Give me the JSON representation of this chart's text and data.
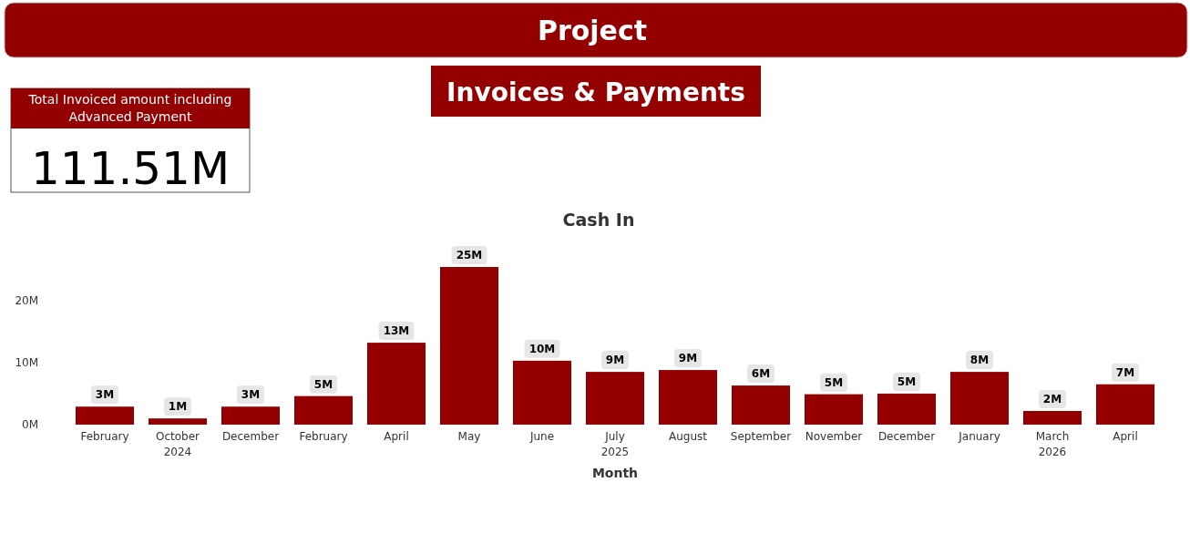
{
  "chart_data": [
    {
      "type": "other",
      "title": "Project",
      "subtitle": "Invoices & Payments"
    },
    {
      "type": "other",
      "title": "Total Invoiced amount including Advanced Payment",
      "annotations": [
        "111.51M"
      ]
    },
    {
      "type": "bar",
      "title": "Cash In",
      "xlabel": "Month",
      "categories": [
        "February",
        "October\n2024",
        "December",
        "February",
        "April",
        "May",
        "June",
        "July\n2025",
        "August",
        "September",
        "November",
        "December",
        "January",
        "March\n2026",
        "April"
      ],
      "values": [
        2.9,
        1.0,
        2.9,
        4.6,
        13.2,
        25.4,
        10.3,
        8.5,
        8.8,
        6.3,
        4.9,
        5.0,
        8.5,
        2.2,
        6.5
      ],
      "value_labels": [
        "3M",
        "1M",
        "3M",
        "5M",
        "13M",
        "25M",
        "10M",
        "9M",
        "9M",
        "6M",
        "5M",
        "5M",
        "8M",
        "2M",
        "7M"
      ],
      "color": "#940000",
      "ylim": [
        0,
        25.4
      ],
      "yticks": [
        {
          "value": 0,
          "label": "0M"
        },
        {
          "value": 10,
          "label": "10M"
        },
        {
          "value": 20,
          "label": "20M"
        }
      ],
      "grid": false
    }
  ]
}
